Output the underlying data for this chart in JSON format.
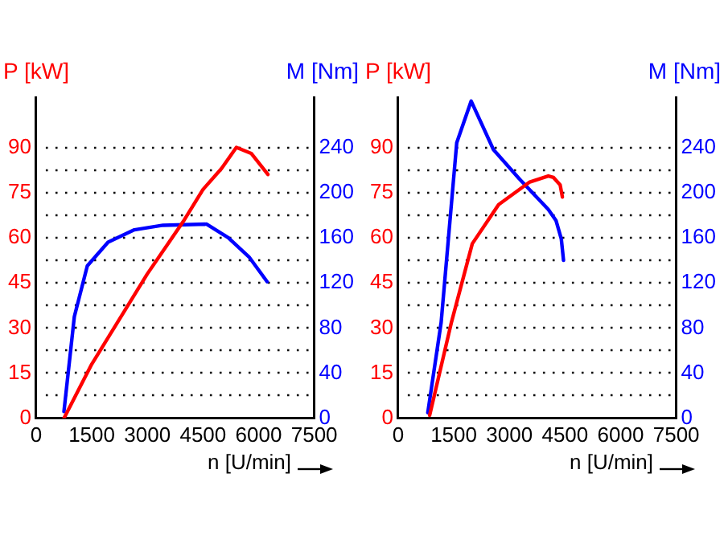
{
  "chart_data": [
    {
      "type": "line",
      "ylabel": "P [kW]",
      "y2label": "M [Nm]",
      "xlabel": "n [U/min]",
      "xlim": [
        0,
        7500
      ],
      "xticks": [
        0,
        1500,
        3000,
        4500,
        6000,
        7500
      ],
      "ylim": [
        0,
        106.5
      ],
      "yticks": [
        0,
        {
          "value": 7.5,
          "label": null
        },
        15,
        {
          "value": 22.5,
          "label": null
        },
        30,
        {
          "value": 37.5,
          "label": null
        },
        45,
        {
          "value": 52.5,
          "label": null
        },
        60,
        {
          "value": 67.5,
          "label": null
        },
        75,
        {
          "value": 82.5,
          "label": null
        },
        90
      ],
      "y2lim": [
        0,
        284
      ],
      "y2ticks": [
        0,
        40,
        80,
        120,
        160,
        200,
        240
      ],
      "grid": "y",
      "marker": "none",
      "series": [
        {
          "color": "#ff0000",
          "x": [
            750,
            1500,
            2000,
            2500,
            3000,
            3500,
            4000,
            4500,
            5000,
            5400,
            5800,
            6250
          ],
          "values": [
            0,
            18,
            28,
            38,
            48,
            57,
            66,
            76,
            83,
            90,
            88,
            81
          ]
        },
        {
          "color": "#0000ff",
          "axis": "y2",
          "x": [
            750,
            1030,
            1380,
            1940,
            2650,
            3420,
            4600,
            5180,
            5740,
            6230
          ],
          "values": [
            6,
            90,
            135,
            156,
            167,
            171,
            172,
            160,
            143,
            121
          ]
        }
      ]
    },
    {
      "type": "line",
      "ylabel": "P [kW]",
      "y2label": "M [Nm]",
      "xlabel": "n [U/min]",
      "xlim": [
        0,
        7500
      ],
      "xticks": [
        0,
        1500,
        3000,
        4500,
        6000,
        7500
      ],
      "ylim": [
        0,
        106.5
      ],
      "yticks": [
        0,
        {
          "value": 7.5,
          "label": null
        },
        15,
        {
          "value": 22.5,
          "label": null
        },
        30,
        {
          "value": 37.5,
          "label": null
        },
        45,
        {
          "value": 52.5,
          "label": null
        },
        60,
        {
          "value": 67.5,
          "label": null
        },
        75,
        {
          "value": 82.5,
          "label": null
        },
        90
      ],
      "y2lim": [
        0,
        284
      ],
      "y2ticks": [
        0,
        40,
        80,
        120,
        160,
        200,
        240
      ],
      "grid": "y",
      "marker": "none",
      "series": [
        {
          "color": "#ff0000",
          "x": [
            850,
            1440,
            2000,
            2710,
            3550,
            4050,
            4190,
            4370,
            4430
          ],
          "values": [
            1,
            32,
            58,
            71,
            78.5,
            80.5,
            80,
            77.5,
            73.5
          ]
        },
        {
          "color": "#0000ff",
          "axis": "y2",
          "x": [
            800,
            1160,
            1580,
            1970,
            2570,
            3270,
            4050,
            4260,
            4400,
            4460
          ],
          "values": [
            5,
            85,
            244,
            281,
            238,
            212,
            185,
            175,
            159,
            140
          ]
        }
      ]
    }
  ]
}
